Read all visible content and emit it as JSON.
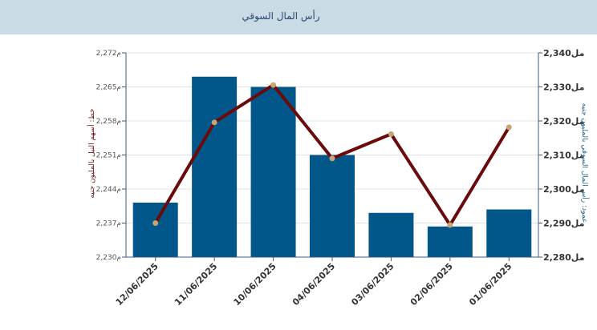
{
  "header": {
    "title": "رأس المال السوقي"
  },
  "chart_data": {
    "type": "bar",
    "title": "رأس المال السوقي",
    "categories": [
      "12/06/2025",
      "11/06/2025",
      "10/06/2025",
      "04/06/2025",
      "03/06/2025",
      "02/06/2025",
      "01/06/2025"
    ],
    "series": [
      {
        "name": "عمود: رأس المال السوقي بالمليون جنيه",
        "chart": "bar",
        "axis": "right",
        "values": [
          2296,
          2333,
          2330,
          2310,
          2293,
          2289,
          2294
        ]
      },
      {
        "name": "خط: أسهم النيل بالمليون جنيه",
        "chart": "line",
        "axis": "left",
        "values": [
          2237.0,
          2257.7,
          2265.4,
          2250.3,
          2255.3,
          2236.6,
          2256.7
        ]
      }
    ],
    "ylabel_left": "خط: أسهم النيل بالمليون جنيه",
    "ylabel_right": "عمود: رأس المال السوقي بالمليون جنيه",
    "left_axis": {
      "ylim": [
        2230,
        2272
      ],
      "ticks": [
        2230,
        2237,
        2244,
        2251,
        2258,
        2265,
        2272
      ],
      "tick_labels": [
        "2,230م",
        "2,237م",
        "2,244م",
        "2,251م",
        "2,258م",
        "2,265م",
        "2,272م"
      ]
    },
    "right_axis": {
      "ylim": [
        2280,
        2340
      ],
      "ticks": [
        2280,
        2290,
        2300,
        2310,
        2320,
        2330,
        2340
      ],
      "tick_labels": [
        "2,280مل",
        "2,290مل",
        "2,300مل",
        "2,310مل",
        "2,320مل",
        "2,330مل",
        "2,340مل"
      ]
    },
    "grid": true,
    "colors": {
      "bar": "#02578a",
      "line": "#6b0a0a",
      "marker": "#c8a574",
      "grid": "#dfe3ea",
      "axis": "#3d5a80"
    }
  }
}
